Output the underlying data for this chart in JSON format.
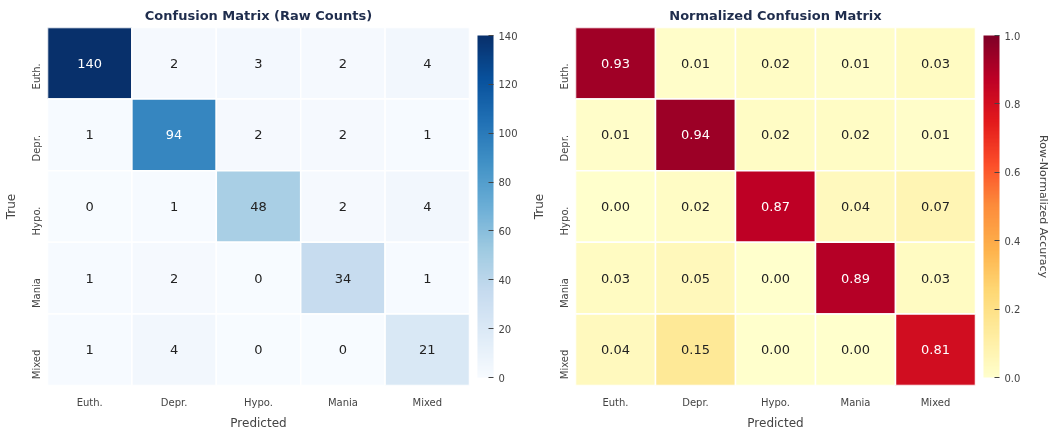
{
  "chart_data": [
    {
      "type": "heatmap",
      "title": "Confusion Matrix (Raw Counts)",
      "xlabel": "Predicted",
      "ylabel": "True",
      "categories": [
        "Euth.",
        "Depr.",
        "Hypo.",
        "Mania",
        "Mixed"
      ],
      "y_categories": [
        "Euth.",
        "Depr.",
        "Hypo.",
        "Mania",
        "Mixed"
      ],
      "cells": [
        [
          140,
          2,
          3,
          2,
          4
        ],
        [
          1,
          94,
          2,
          2,
          1
        ],
        [
          0,
          1,
          48,
          2,
          4
        ],
        [
          1,
          2,
          0,
          34,
          1
        ],
        [
          1,
          4,
          0,
          0,
          21
        ]
      ],
      "data_labels": true,
      "clim": [
        0,
        140
      ],
      "cticks": [
        0,
        20,
        40,
        60,
        80,
        100,
        120,
        140
      ]
    },
    {
      "type": "heatmap",
      "title": "Normalized Confusion Matrix",
      "xlabel": "Predicted",
      "ylabel": "True",
      "clabel": "Row-Normalized Accuracy",
      "categories": [
        "Euth.",
        "Depr.",
        "Hypo.",
        "Mania",
        "Mixed"
      ],
      "y_categories": [
        "Euth.",
        "Depr.",
        "Hypo.",
        "Mania",
        "Mixed"
      ],
      "cells": [
        [
          0.93,
          0.01,
          0.02,
          0.01,
          0.03
        ],
        [
          0.01,
          0.94,
          0.02,
          0.02,
          0.01
        ],
        [
          0.0,
          0.02,
          0.87,
          0.04,
          0.07
        ],
        [
          0.03,
          0.05,
          0.0,
          0.89,
          0.03
        ],
        [
          0.04,
          0.15,
          0.0,
          0.0,
          0.81
        ]
      ],
      "cell_labels": [
        [
          "0.93",
          "0.01",
          "0.02",
          "0.01",
          "0.03"
        ],
        [
          "0.01",
          "0.94",
          "0.02",
          "0.02",
          "0.01"
        ],
        [
          "0.00",
          "0.02",
          "0.87",
          "0.04",
          "0.07"
        ],
        [
          "0.03",
          "0.05",
          "0.00",
          "0.89",
          "0.03"
        ],
        [
          "0.04",
          "0.15",
          "0.00",
          "0.00",
          "0.81"
        ]
      ],
      "clim": [
        0.0,
        1.0
      ],
      "cticks": [
        {
          "value": 0.0,
          "label": "0.0"
        },
        {
          "value": 0.2,
          "label": "0.2"
        },
        {
          "value": 0.4,
          "label": "0.4"
        },
        {
          "value": 0.6,
          "label": "0.6"
        },
        {
          "value": 0.8,
          "label": "0.8"
        },
        {
          "value": 1.0,
          "label": "1.0"
        }
      ]
    }
  ]
}
